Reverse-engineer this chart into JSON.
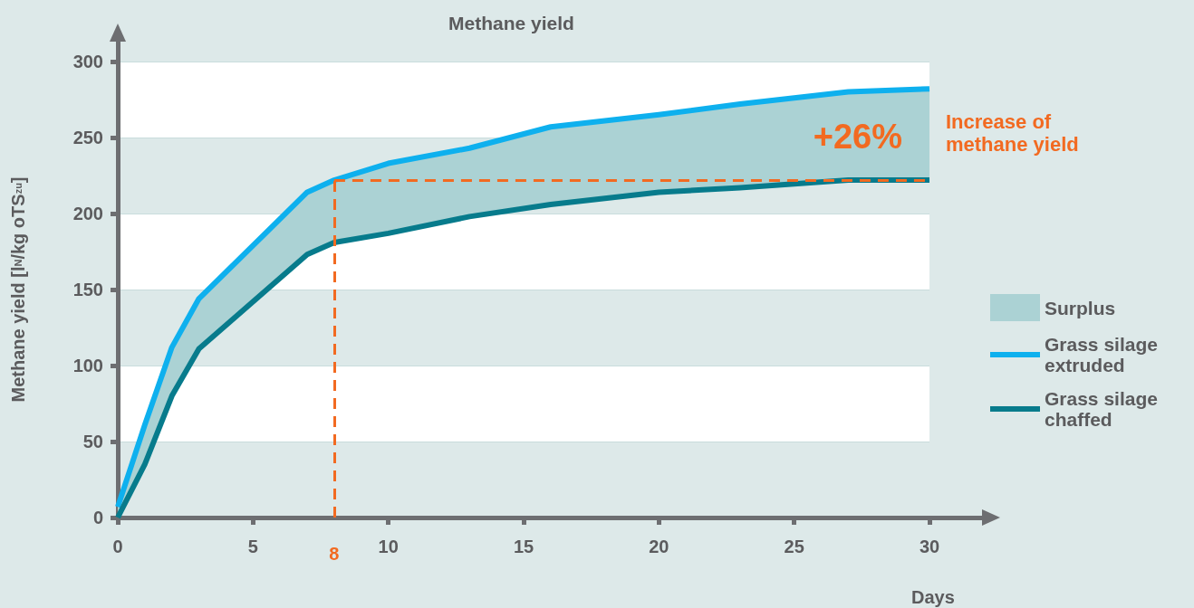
{
  "chart_data": {
    "type": "line",
    "title": "Methane yield",
    "xlabel": "Days",
    "ylabel": "Methane yield [l$_{N}$/kg oTS$_{zu}$]",
    "x": [
      0,
      1,
      2,
      3,
      7,
      8,
      10,
      13,
      16,
      20,
      23,
      27,
      30
    ],
    "series": [
      {
        "name": "Grass silage extruded",
        "color": "#0eb0ee",
        "values": [
          7,
          61,
          112,
          144,
          214,
          222,
          233,
          243,
          257,
          265,
          272,
          280,
          282
        ]
      },
      {
        "name": "Grass silage chaffed",
        "color": "#077b8c",
        "values": [
          0,
          35,
          80,
          111,
          173,
          181,
          187,
          198,
          206,
          214,
          217,
          222,
          222
        ]
      },
      {
        "name": "Surplus",
        "type": "area",
        "color": "#abd2d4",
        "values": [
          null,
          null,
          null,
          null,
          null,
          null,
          null,
          null,
          null,
          null,
          null,
          null,
          null
        ],
        "upper": [
          7,
          61,
          112,
          144,
          214,
          222,
          233,
          243,
          257,
          265,
          272,
          280,
          282
        ],
        "lower": [
          0,
          35,
          80,
          111,
          173,
          181,
          187,
          198,
          206,
          214,
          217,
          222,
          222
        ]
      }
    ],
    "xlim": [
      0,
      30
    ],
    "xticks": [
      0,
      5,
      10,
      15,
      20,
      25,
      30
    ],
    "ylim": [
      0,
      300
    ],
    "yticks": [
      0,
      50,
      100,
      150,
      200,
      250,
      300
    ],
    "ref_lines": [
      {
        "axis": "x",
        "value": 8,
        "label": "8",
        "color": "#f26a21",
        "line_style": "dashed"
      },
      {
        "axis": "y",
        "value": 222,
        "color": "#f26a21",
        "line_style": "dashed"
      }
    ],
    "annotations": [
      "+26%",
      "Increase of methane yield"
    ],
    "grid": "y",
    "legend": "right",
    "marker": "none",
    "line_style": "solid"
  }
}
